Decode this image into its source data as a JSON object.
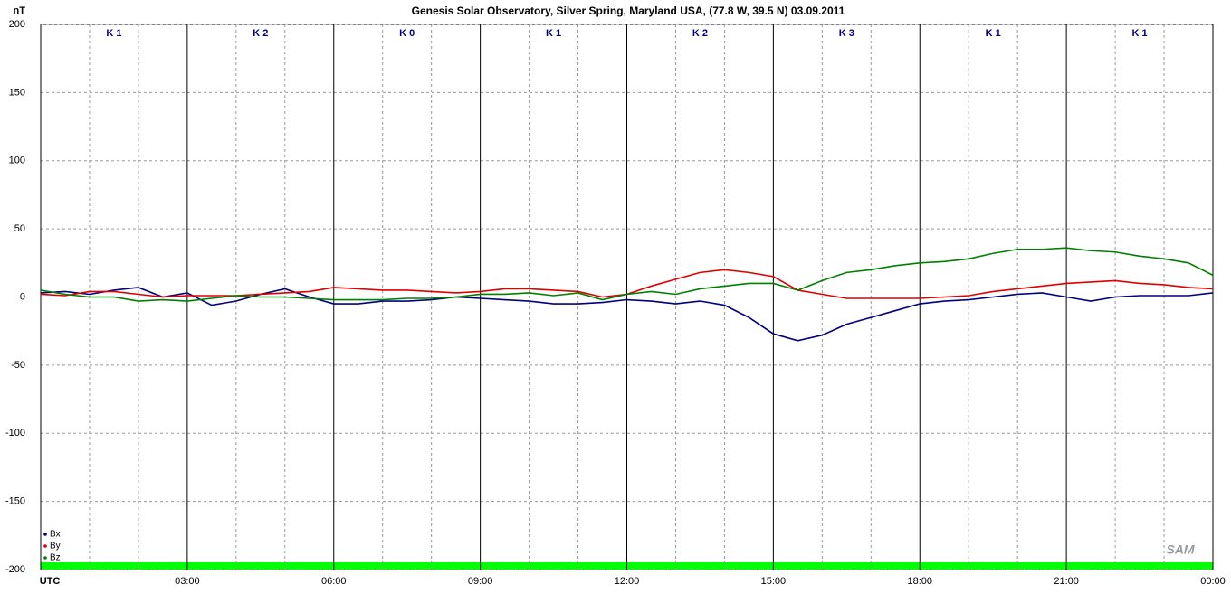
{
  "chart_data": {
    "type": "line",
    "title": "Genesis Solar Observatory, Silver Spring, Maryland USA, (77.8 W, 39.5 N)  03.09.2011",
    "y_label": "nT",
    "logo": "SAM",
    "annotations": [
      "K 1",
      "K 2",
      "K 0",
      "K 1",
      "K 2",
      "K 3",
      "K 1",
      "K 1"
    ],
    "x": [
      0,
      0.5,
      1,
      1.5,
      2,
      2.5,
      3,
      3.5,
      4,
      4.5,
      5,
      5.5,
      6,
      6.5,
      7,
      7.5,
      8,
      8.5,
      9,
      9.5,
      10,
      10.5,
      11,
      11.5,
      12,
      12.5,
      13,
      13.5,
      14,
      14.5,
      15,
      15.5,
      16,
      16.5,
      17,
      17.5,
      18,
      18.5,
      19,
      19.5,
      20,
      20.5,
      21,
      21.5,
      22,
      22.5,
      23,
      23.5,
      24
    ],
    "series": [
      {
        "name": "Bx",
        "color": "#000080",
        "values": [
          3,
          4,
          2,
          5,
          7,
          0,
          3,
          -6,
          -3,
          2,
          6,
          0,
          -5,
          -5,
          -3,
          -3,
          -2,
          0,
          -1,
          -2,
          -3,
          -5,
          -5,
          -4,
          -2,
          -3,
          -5,
          -3,
          -6,
          -15,
          -27,
          -32,
          -28,
          -20,
          -15,
          -10,
          -5,
          -3,
          -2,
          0,
          2,
          3,
          0,
          -3,
          0,
          1,
          1,
          1,
          3
        ]
      },
      {
        "name": "By",
        "color": "#e00000",
        "values": [
          2,
          1,
          4,
          4,
          2,
          0,
          1,
          1,
          1,
          2,
          3,
          4,
          7,
          6,
          5,
          5,
          4,
          3,
          4,
          6,
          6,
          5,
          4,
          0,
          2,
          8,
          13,
          18,
          20,
          18,
          15,
          5,
          2,
          -1,
          -1,
          -1,
          -1,
          0,
          1,
          4,
          6,
          8,
          10,
          11,
          12,
          10,
          9,
          7,
          6
        ]
      },
      {
        "name": "Bz",
        "color": "#008000",
        "values": [
          5,
          2,
          0,
          0,
          -3,
          -2,
          -3,
          -1,
          1,
          0,
          0,
          -1,
          -2,
          -2,
          -2,
          -1,
          -1,
          0,
          2,
          2,
          3,
          1,
          3,
          -2,
          2,
          4,
          2,
          6,
          8,
          10,
          10,
          5,
          12,
          18,
          20,
          23,
          25,
          26,
          28,
          32,
          35,
          35,
          36,
          34,
          33,
          30,
          28,
          25,
          16
        ]
      }
    ],
    "xlim": [
      0,
      24
    ],
    "xticks": [
      {
        "value": 0,
        "label": "UTC"
      },
      {
        "value": 3,
        "label": "03:00"
      },
      {
        "value": 6,
        "label": "06:00"
      },
      {
        "value": 9,
        "label": "09:00"
      },
      {
        "value": 12,
        "label": "12:00"
      },
      {
        "value": 15,
        "label": "15:00"
      },
      {
        "value": 18,
        "label": "18:00"
      },
      {
        "value": 21,
        "label": "21:00"
      },
      {
        "value": 24,
        "label": "00:00"
      }
    ],
    "xgrid_minor": [
      1,
      2,
      4,
      5,
      7,
      8,
      10,
      11,
      13,
      14,
      16,
      17,
      19,
      20,
      22,
      23
    ],
    "ylim": [
      -200,
      200
    ],
    "yticks": [
      200,
      150,
      100,
      50,
      0,
      -50,
      -100,
      -150,
      -200
    ],
    "grid": true,
    "legend": "lower left"
  }
}
